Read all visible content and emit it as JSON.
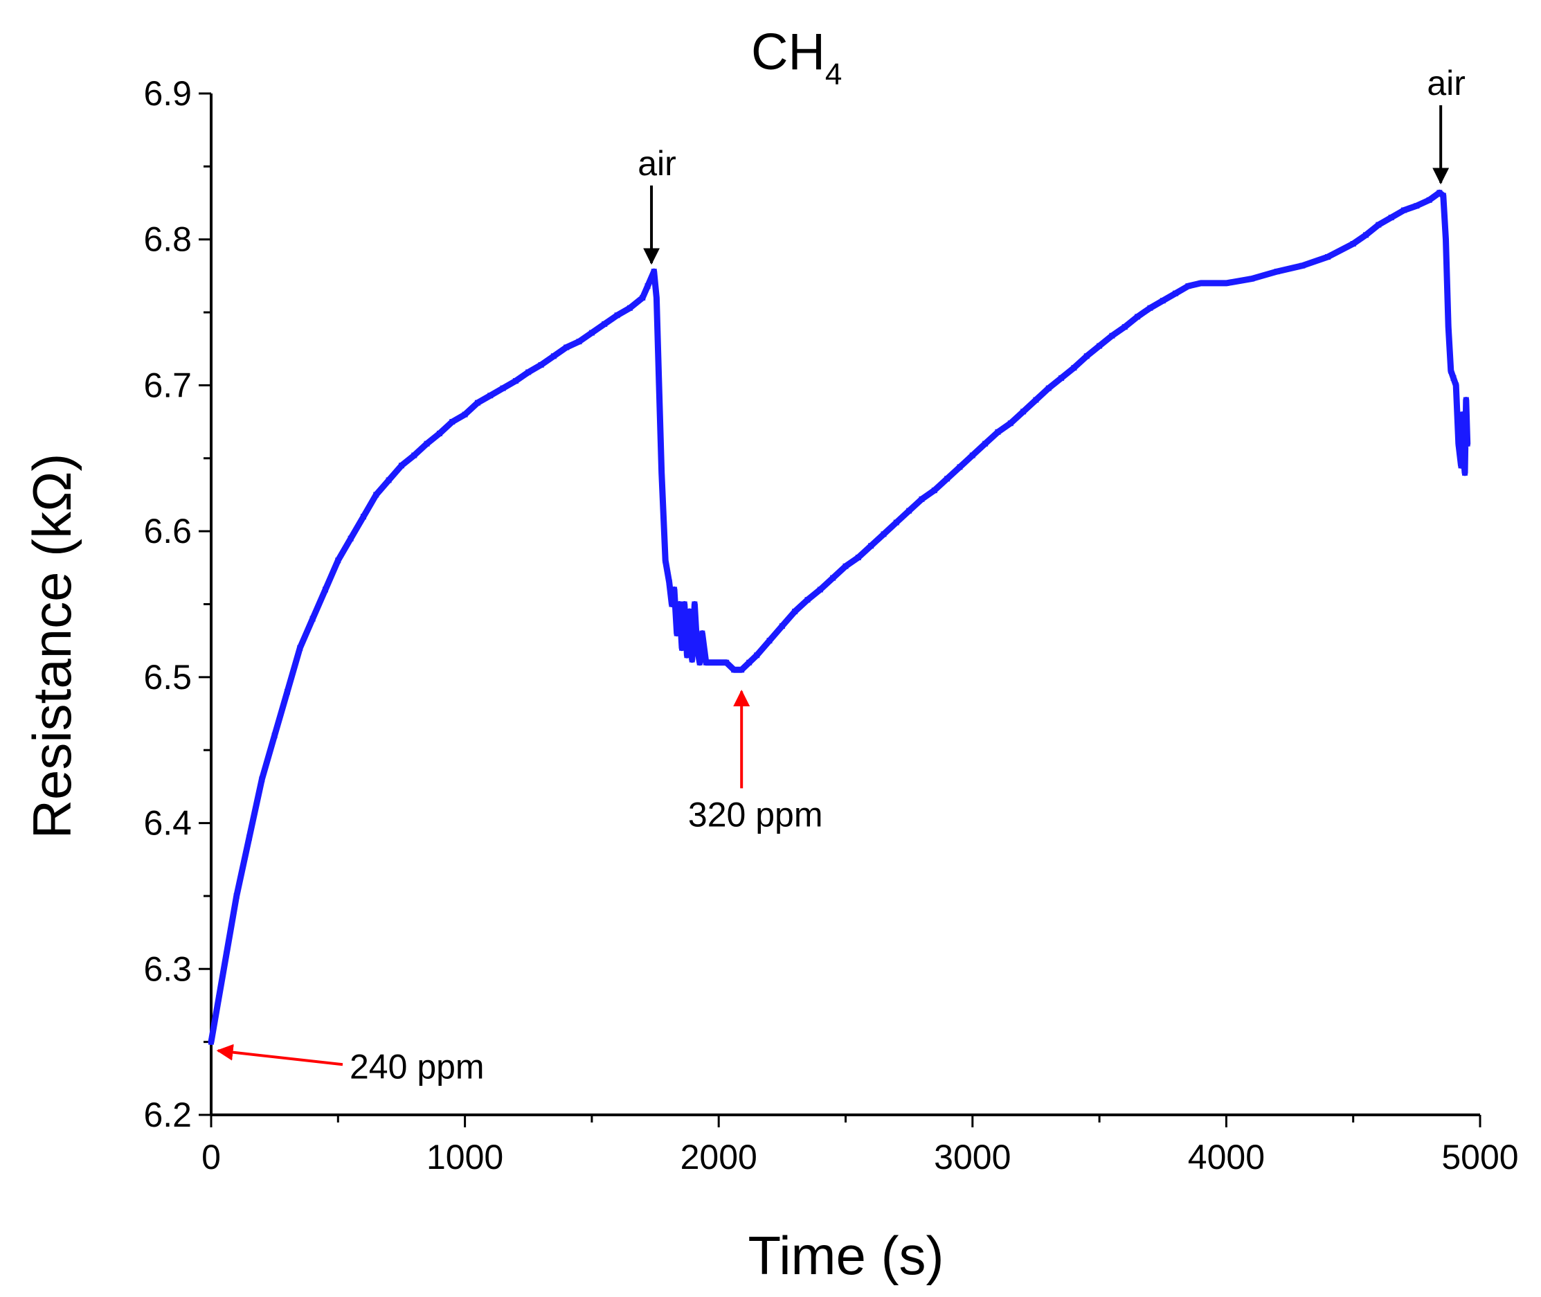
{
  "chart_data": {
    "type": "line",
    "title": "CH",
    "title_subscript": "4",
    "xlabel": "Time (s)",
    "ylabel": "Resistance (kΩ)",
    "xlim": [
      0,
      5000
    ],
    "ylim": [
      6.2,
      6.9
    ],
    "xticks": [
      0,
      1000,
      2000,
      3000,
      4000,
      5000
    ],
    "xtick_labels": [
      "0",
      "1000",
      "2000",
      "3000",
      "4000",
      "5000"
    ],
    "yticks": [
      6.2,
      6.3,
      6.4,
      6.5,
      6.6,
      6.7,
      6.8,
      6.9
    ],
    "ytick_labels": [
      "6.2",
      "6.3",
      "6.4",
      "6.5",
      "6.6",
      "6.7",
      "6.8",
      "6.9"
    ],
    "grid": false,
    "series": [
      {
        "name": "Resistance",
        "color": "#1a1aff",
        "points": [
          [
            0,
            6.25
          ],
          [
            30,
            6.28
          ],
          [
            60,
            6.31
          ],
          [
            100,
            6.35
          ],
          [
            150,
            6.39
          ],
          [
            200,
            6.43
          ],
          [
            250,
            6.46
          ],
          [
            300,
            6.49
          ],
          [
            350,
            6.52
          ],
          [
            400,
            6.54
          ],
          [
            450,
            6.56
          ],
          [
            500,
            6.58
          ],
          [
            550,
            6.595
          ],
          [
            600,
            6.61
          ],
          [
            650,
            6.625
          ],
          [
            700,
            6.635
          ],
          [
            750,
            6.645
          ],
          [
            800,
            6.652
          ],
          [
            850,
            6.66
          ],
          [
            900,
            6.667
          ],
          [
            950,
            6.675
          ],
          [
            1000,
            6.68
          ],
          [
            1050,
            6.688
          ],
          [
            1100,
            6.693
          ],
          [
            1150,
            6.698
          ],
          [
            1200,
            6.703
          ],
          [
            1250,
            6.709
          ],
          [
            1300,
            6.714
          ],
          [
            1350,
            6.72
          ],
          [
            1400,
            6.726
          ],
          [
            1450,
            6.73
          ],
          [
            1500,
            6.736
          ],
          [
            1550,
            6.742
          ],
          [
            1600,
            6.748
          ],
          [
            1650,
            6.753
          ],
          [
            1700,
            6.76
          ],
          [
            1720,
            6.768
          ],
          [
            1745,
            6.778
          ],
          [
            1755,
            6.76
          ],
          [
            1765,
            6.7
          ],
          [
            1775,
            6.64
          ],
          [
            1790,
            6.58
          ],
          [
            1805,
            6.565
          ],
          [
            1815,
            6.55
          ],
          [
            1825,
            6.56
          ],
          [
            1835,
            6.53
          ],
          [
            1845,
            6.55
          ],
          [
            1855,
            6.52
          ],
          [
            1865,
            6.55
          ],
          [
            1875,
            6.515
          ],
          [
            1885,
            6.545
          ],
          [
            1895,
            6.512
          ],
          [
            1905,
            6.55
          ],
          [
            1915,
            6.52
          ],
          [
            1925,
            6.51
          ],
          [
            1935,
            6.53
          ],
          [
            1950,
            6.51
          ],
          [
            1975,
            6.51
          ],
          [
            2000,
            6.51
          ],
          [
            2030,
            6.51
          ],
          [
            2060,
            6.505
          ],
          [
            2090,
            6.505
          ],
          [
            2120,
            6.51
          ],
          [
            2150,
            6.515
          ],
          [
            2200,
            6.525
          ],
          [
            2250,
            6.535
          ],
          [
            2300,
            6.545
          ],
          [
            2350,
            6.553
          ],
          [
            2400,
            6.56
          ],
          [
            2450,
            6.568
          ],
          [
            2500,
            6.576
          ],
          [
            2550,
            6.582
          ],
          [
            2600,
            6.59
          ],
          [
            2650,
            6.598
          ],
          [
            2700,
            6.606
          ],
          [
            2750,
            6.614
          ],
          [
            2800,
            6.622
          ],
          [
            2850,
            6.628
          ],
          [
            2900,
            6.636
          ],
          [
            2950,
            6.644
          ],
          [
            3000,
            6.652
          ],
          [
            3050,
            6.66
          ],
          [
            3100,
            6.668
          ],
          [
            3150,
            6.674
          ],
          [
            3200,
            6.682
          ],
          [
            3250,
            6.69
          ],
          [
            3300,
            6.698
          ],
          [
            3350,
            6.705
          ],
          [
            3400,
            6.712
          ],
          [
            3450,
            6.72
          ],
          [
            3500,
            6.727
          ],
          [
            3550,
            6.734
          ],
          [
            3600,
            6.74
          ],
          [
            3650,
            6.747
          ],
          [
            3700,
            6.753
          ],
          [
            3750,
            6.758
          ],
          [
            3800,
            6.763
          ],
          [
            3850,
            6.768
          ],
          [
            3900,
            6.77
          ],
          [
            4000,
            6.77
          ],
          [
            4100,
            6.773
          ],
          [
            4200,
            6.778
          ],
          [
            4300,
            6.782
          ],
          [
            4400,
            6.788
          ],
          [
            4500,
            6.797
          ],
          [
            4550,
            6.803
          ],
          [
            4600,
            6.81
          ],
          [
            4650,
            6.815
          ],
          [
            4700,
            6.82
          ],
          [
            4750,
            6.823
          ],
          [
            4800,
            6.827
          ],
          [
            4840,
            6.832
          ],
          [
            4855,
            6.83
          ],
          [
            4865,
            6.8
          ],
          [
            4875,
            6.74
          ],
          [
            4885,
            6.71
          ],
          [
            4895,
            6.705
          ],
          [
            4905,
            6.7
          ],
          [
            4915,
            6.66
          ],
          [
            4925,
            6.645
          ],
          [
            4930,
            6.68
          ],
          [
            4935,
            6.65
          ],
          [
            4940,
            6.64
          ],
          [
            4945,
            6.69
          ],
          [
            4950,
            6.66
          ]
        ]
      }
    ],
    "annotations": [
      {
        "text": "air",
        "x": 1735,
        "y": 6.78,
        "color": "#000000",
        "direction": "down"
      },
      {
        "text": "air",
        "x": 4845,
        "y": 6.835,
        "color": "#000000",
        "direction": "down"
      },
      {
        "text": "240 ppm",
        "x": 0,
        "y": 6.244,
        "color": "#ff0000",
        "direction": "left"
      },
      {
        "text": "320 ppm",
        "x": 2090,
        "y": 6.495,
        "color": "#ff0000",
        "direction": "up"
      }
    ]
  }
}
